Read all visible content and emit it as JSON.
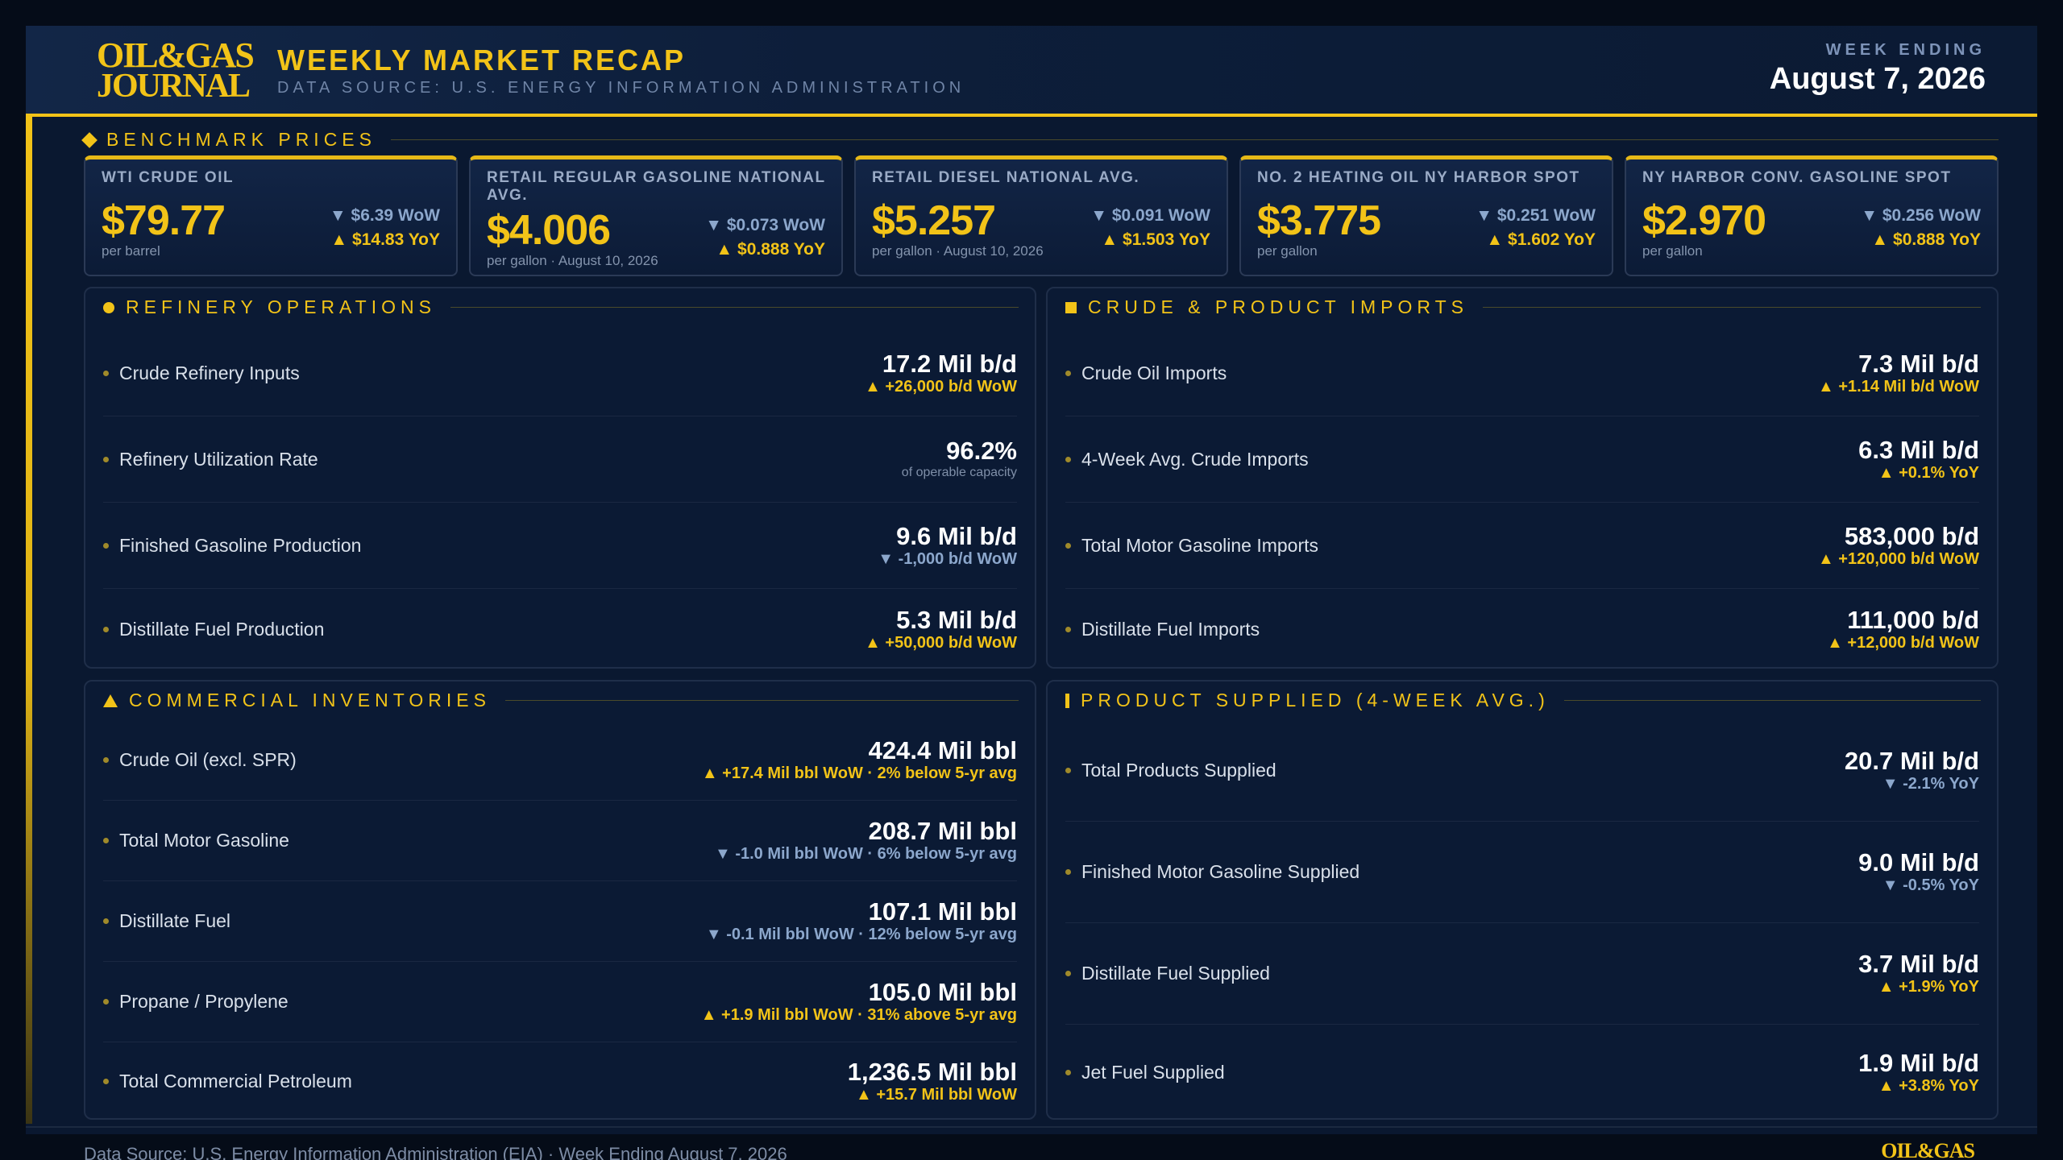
{
  "header": {
    "logo_line1": "OIL&GAS",
    "logo_line2": "JOURNAL",
    "title": "WEEKLY MARKET RECAP",
    "subtitle": "DATA SOURCE: U.S. ENERGY INFORMATION ADMINISTRATION",
    "week_label": "WEEK ENDING",
    "week_date": "August 7, 2026"
  },
  "benchmark": {
    "title": "BENCHMARK PRICES",
    "cards": [
      {
        "label": "WTI CRUDE OIL",
        "price": "$79.77",
        "unit": "per barrel",
        "wow": "▼ $6.39 WoW",
        "yoy": "▲ $14.83 YoY"
      },
      {
        "label": "RETAIL REGULAR GASOLINE NATIONAL AVG.",
        "price": "$4.006",
        "unit": "per gallon · August 10, 2026",
        "wow": "▼ $0.073 WoW",
        "yoy": "▲ $0.888 YoY"
      },
      {
        "label": "RETAIL DIESEL NATIONAL AVG.",
        "price": "$5.257",
        "unit": "per gallon · August 10, 2026",
        "wow": "▼ $0.091 WoW",
        "yoy": "▲ $1.503 YoY"
      },
      {
        "label": "NO. 2 HEATING OIL NY HARBOR SPOT",
        "price": "$3.775",
        "unit": "per gallon",
        "wow": "▼ $0.251 WoW",
        "yoy": "▲ $1.602 YoY"
      },
      {
        "label": "NY HARBOR CONV. GASOLINE SPOT",
        "price": "$2.970",
        "unit": "per gallon",
        "wow": "▼ $0.256 WoW",
        "yoy": "▲ $0.888 YoY"
      }
    ]
  },
  "refinery": {
    "title": "REFINERY OPERATIONS",
    "rows": [
      {
        "label": "Crude Refinery Inputs",
        "value": "17.2 Mil b/d",
        "change": "▲ +26,000 b/d WoW"
      },
      {
        "label": "Refinery Utilization Rate",
        "value": "96.2%",
        "note": "of operable capacity"
      },
      {
        "label": "Finished Gasoline Production",
        "value": "9.6 Mil b/d",
        "change": "▼ -1,000 b/d WoW"
      },
      {
        "label": "Distillate Fuel Production",
        "value": "5.3 Mil b/d",
        "change": "▲ +50,000 b/d WoW"
      }
    ]
  },
  "imports": {
    "title": "CRUDE & PRODUCT IMPORTS",
    "rows": [
      {
        "label": "Crude Oil Imports",
        "value": "7.3 Mil b/d",
        "change": "▲ +1.14 Mil b/d WoW"
      },
      {
        "label": "4-Week Avg. Crude Imports",
        "value": "6.3 Mil b/d",
        "change": "▲ +0.1% YoY"
      },
      {
        "label": "Total Motor Gasoline Imports",
        "value": "583,000 b/d",
        "change": "▲ +120,000 b/d WoW"
      },
      {
        "label": "Distillate Fuel Imports",
        "value": "111,000 b/d",
        "change": "▲ +12,000 b/d WoW"
      }
    ]
  },
  "inventories": {
    "title": "COMMERCIAL INVENTORIES",
    "rows": [
      {
        "label": "Crude Oil (excl. SPR)",
        "value": "424.4 Mil bbl",
        "change": "▲ +17.4 Mil bbl WoW · 2% below 5-yr avg"
      },
      {
        "label": "Total Motor Gasoline",
        "value": "208.7 Mil bbl",
        "change": "▼ -1.0 Mil bbl WoW · 6% below 5-yr avg"
      },
      {
        "label": "Distillate Fuel",
        "value": "107.1 Mil bbl",
        "change": "▼ -0.1 Mil bbl WoW · 12% below 5-yr avg"
      },
      {
        "label": "Propane / Propylene",
        "value": "105.0 Mil bbl",
        "change": "▲ +1.9 Mil bbl WoW · 31% above 5-yr avg"
      },
      {
        "label": "Total Commercial Petroleum",
        "value": "1,236.5 Mil bbl",
        "change": "▲ +15.7 Mil bbl WoW"
      }
    ]
  },
  "supplied": {
    "title": "PRODUCT SUPPLIED (4-WEEK AVG.)",
    "rows": [
      {
        "label": "Total Products Supplied",
        "value": "20.7 Mil b/d",
        "change": "▼ -2.1% YoY"
      },
      {
        "label": "Finished Motor Gasoline Supplied",
        "value": "9.0 Mil b/d",
        "change": "▼ -0.5% YoY"
      },
      {
        "label": "Distillate Fuel Supplied",
        "value": "3.7 Mil b/d",
        "change": "▲ +1.9% YoY"
      },
      {
        "label": "Jet Fuel Supplied",
        "value": "1.9 Mil b/d",
        "change": "▲ +3.8% YoY"
      }
    ]
  },
  "footer": {
    "text": "Data Source: U.S. Energy Information Administration (EIA)  ·  Week Ending August 7, 2026",
    "logo": "OIL&GAS"
  },
  "colors": {
    "accent": "#f2c318",
    "up": "#f2c318",
    "down": "#8ca7cc",
    "background": "#0a1830"
  }
}
